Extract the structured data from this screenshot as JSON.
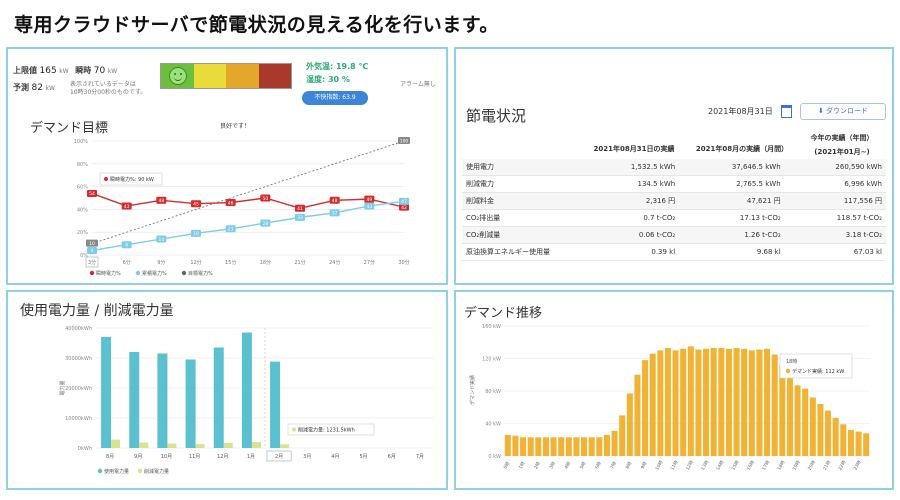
{
  "headline": "専用クラウドサーバで節電状況の見える化を行います。",
  "demand_panel": {
    "upper_limit_label": "上限値",
    "upper_limit_value": "165",
    "upper_limit_unit": "kW",
    "instant_label": "瞬時",
    "instant_value": "70",
    "instant_unit": "kW",
    "forecast_label": "予測",
    "forecast_value": "82",
    "forecast_unit": "kW",
    "note_line1": "表示されているデータは",
    "note_line2": "10時30分00秒のものです。",
    "status_text": "良好です！",
    "level_colors": [
      "#6cbf3c",
      "#e9dc3a",
      "#e3a72a",
      "#a8392b"
    ],
    "outdoor_temp": "外気温: 19.8 ℃",
    "humidity": "湿度: 30 %",
    "discomfort_button": "不快指数: 63.9",
    "alarm_text": "アラーム無し",
    "title": "デマンド目標",
    "tooltip_label": "瞬時電力%",
    "tooltip_value": "90 kW",
    "legend": [
      "瞬時電力%",
      "累積電力%",
      "目標電力%"
    ],
    "chart_data": {
      "type": "line",
      "x": [
        "3分",
        "6分",
        "9分",
        "12分",
        "15分",
        "18分",
        "21分",
        "24分",
        "27分",
        "30分"
      ],
      "yticks": [
        "100%",
        "80%",
        "60%",
        "40%",
        "20%",
        "0%"
      ],
      "ylim": [
        0,
        100
      ],
      "series": [
        {
          "name": "瞬時電力%",
          "color": "#d42b2b",
          "values": [
            54,
            43,
            48,
            45,
            46,
            50,
            41,
            48,
            49,
            42
          ],
          "labels": [
            "54",
            "43",
            "48",
            "45",
            "46",
            "50",
            "41",
            "48",
            "49",
            "42"
          ]
        },
        {
          "name": "累積電力%",
          "color": "#7ecbea",
          "values": [
            4,
            9,
            14,
            19,
            23,
            28,
            33,
            37,
            43,
            47
          ],
          "labels": [
            "4",
            "9",
            "14",
            "19",
            "23",
            "28",
            "33",
            "37",
            "43",
            "47"
          ]
        },
        {
          "name": "目標電力%",
          "color": "#666666",
          "values": [
            10,
            20,
            30,
            40,
            50,
            60,
            70,
            80,
            90,
            100
          ],
          "labels": [
            "10",
            "",
            "",
            "",
            "",
            "",
            "",
            "",
            "",
            "100"
          ],
          "dashed": true
        }
      ]
    }
  },
  "saving_panel": {
    "title": "節電状況",
    "date_value": "2021年08月31日",
    "download_label": "ダウンロード",
    "col_headers": [
      "2021年08月31日の実績",
      "2021年08月の実績（月間）",
      "今年の実績（年間）",
      "(2021年01月~)"
    ],
    "rows": [
      {
        "label": "使用電力",
        "day": "1,532.5 kWh",
        "month": "37,646.5 kWh",
        "year": "260,590 kWh"
      },
      {
        "label": "削減電力",
        "day": "134.5 kWh",
        "month": "2,765.5 kWh",
        "year": "6,996 kWh"
      },
      {
        "label": "削減料金",
        "day": "2,316 円",
        "month": "47,621 円",
        "year": "117,556 円"
      },
      {
        "label": "CO₂排出量",
        "day": "0.7 t-CO₂",
        "month": "17.13 t-CO₂",
        "year": "118.57 t-CO₂"
      },
      {
        "label": "CO₂削減量",
        "day": "0.06 t-CO₂",
        "month": "1.26 t-CO₂",
        "year": "3.18 t-CO₂"
      },
      {
        "label": "原油換算エネルギー使用量",
        "day": "0.39 kl",
        "month": "9.68 kl",
        "year": "67.03 kl"
      }
    ]
  },
  "usage_panel": {
    "title": "使用電力量 / 削減電力量",
    "ylabel": "電力量",
    "tooltip_label": "削減電力量:",
    "tooltip_value": "1231.5kWh",
    "legend": [
      "使用電力量",
      "削減電力量"
    ],
    "chart_data": {
      "type": "bar",
      "categories": [
        "8月",
        "9月",
        "10月",
        "11月",
        "12月",
        "1月",
        "2月",
        "3月",
        "4月",
        "5月",
        "6月",
        "7月"
      ],
      "yticks": [
        "40000kWh",
        "30000kWh",
        "20000kWh",
        "10000kWh",
        "0kWh"
      ],
      "ylim": [
        0,
        40000
      ],
      "highlight_category": "2月",
      "series": [
        {
          "name": "使用電力量",
          "color": "#5bc0cf",
          "values": [
            37000,
            32000,
            31500,
            29500,
            33500,
            38500,
            28800,
            0,
            0,
            0,
            0,
            0
          ]
        },
        {
          "name": "削減電力量",
          "color": "#d6e48e",
          "values": [
            2800,
            1800,
            1500,
            1300,
            1700,
            2000,
            1231.5,
            0,
            0,
            0,
            0,
            0
          ]
        }
      ]
    }
  },
  "transition_panel": {
    "title": "デマンド推移",
    "ylabel": "デマンド実績",
    "tooltip_time": "18時",
    "tooltip_label": "デマンド実績:",
    "tooltip_value": "112 kW",
    "chart_data": {
      "type": "bar",
      "ylim": [
        0,
        160
      ],
      "yticks": [
        "160 kW",
        "120 kW",
        "80 kW",
        "40 kW",
        "0 kW"
      ],
      "color": "#f2b233",
      "categories": [
        "0時",
        "",
        "1時",
        "",
        "2時",
        "",
        "3時",
        "",
        "4時",
        "",
        "5時",
        "",
        "6時",
        "",
        "7時",
        "",
        "8時",
        "",
        "9時",
        "",
        "10時",
        "",
        "11時",
        "",
        "12時",
        "",
        "13時",
        "",
        "14時",
        "",
        "15時",
        "",
        "16時",
        "",
        "17時",
        "",
        "18時",
        "",
        "19時",
        "",
        "20時",
        "",
        "21時",
        "",
        "22時",
        "",
        "23時",
        ""
      ],
      "values": [
        26,
        25,
        23,
        23,
        23,
        23,
        23,
        23,
        23,
        23,
        23,
        23,
        23,
        26,
        31,
        50,
        77,
        100,
        118,
        126,
        130,
        133,
        130,
        132,
        135,
        131,
        132,
        133,
        133,
        132,
        133,
        132,
        130,
        131,
        132,
        125,
        112,
        97,
        87,
        83,
        72,
        64,
        56,
        47,
        39,
        32,
        30,
        28
      ]
    }
  }
}
